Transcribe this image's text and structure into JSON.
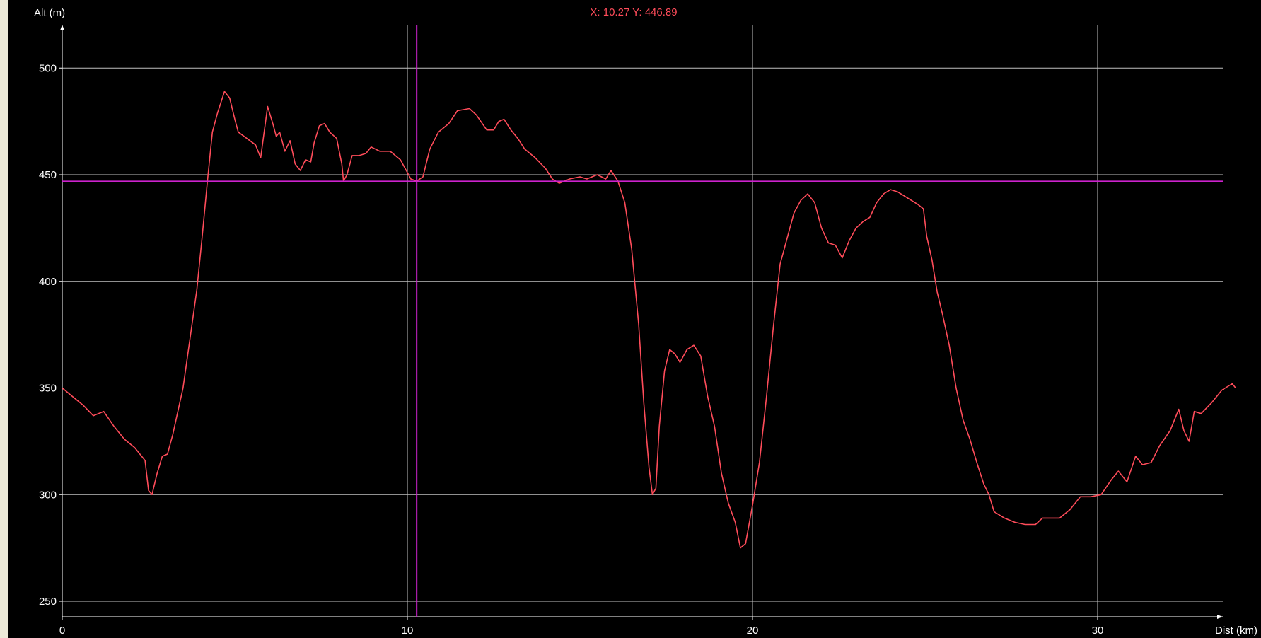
{
  "cursor_readout": "X: 10.27 Y: 446.89",
  "colors": {
    "background": "#000000",
    "window_frame": "#ece9d8",
    "grid": "#c0c0c0",
    "axis": "#ffffff",
    "text": "#ffffff",
    "series": "#ff4c5a",
    "crosshair": "#cc22cc",
    "readout": "#ff4c5a"
  },
  "chart_data": {
    "type": "line",
    "title": "",
    "xlabel": "Dist (km)",
    "ylabel": "Alt (m)",
    "xlim": [
      0,
      34.6
    ],
    "ylim": [
      243,
      521
    ],
    "x_ticks": [
      0,
      10,
      20,
      30
    ],
    "y_ticks": [
      250,
      300,
      350,
      400,
      450,
      500
    ],
    "grid": true,
    "cursor": {
      "x": 10.27,
      "y": 446.89
    },
    "series": [
      {
        "points": [
          [
            0.0,
            350
          ],
          [
            0.3,
            346
          ],
          [
            0.6,
            342
          ],
          [
            0.9,
            337
          ],
          [
            1.2,
            339
          ],
          [
            1.5,
            332
          ],
          [
            1.8,
            326
          ],
          [
            2.1,
            322
          ],
          [
            2.4,
            316
          ],
          [
            2.5,
            302
          ],
          [
            2.6,
            300
          ],
          [
            2.75,
            310
          ],
          [
            2.9,
            318
          ],
          [
            3.05,
            319
          ],
          [
            3.2,
            328
          ],
          [
            3.5,
            350
          ],
          [
            3.7,
            373
          ],
          [
            3.9,
            396
          ],
          [
            4.05,
            420
          ],
          [
            4.2,
            446
          ],
          [
            4.35,
            470
          ],
          [
            4.5,
            479
          ],
          [
            4.7,
            489
          ],
          [
            4.85,
            486
          ],
          [
            5.0,
            476
          ],
          [
            5.1,
            470
          ],
          [
            5.35,
            467
          ],
          [
            5.6,
            464
          ],
          [
            5.75,
            458
          ],
          [
            5.85,
            470
          ],
          [
            5.95,
            482
          ],
          [
            6.1,
            474
          ],
          [
            6.2,
            468
          ],
          [
            6.3,
            470
          ],
          [
            6.45,
            461
          ],
          [
            6.6,
            466
          ],
          [
            6.75,
            455
          ],
          [
            6.9,
            452
          ],
          [
            7.05,
            457
          ],
          [
            7.2,
            456
          ],
          [
            7.3,
            465
          ],
          [
            7.45,
            473
          ],
          [
            7.6,
            474
          ],
          [
            7.75,
            470
          ],
          [
            7.95,
            467
          ],
          [
            8.1,
            455
          ],
          [
            8.15,
            447
          ],
          [
            8.25,
            450
          ],
          [
            8.4,
            459
          ],
          [
            8.6,
            459
          ],
          [
            8.8,
            460
          ],
          [
            8.95,
            463
          ],
          [
            9.2,
            461
          ],
          [
            9.5,
            461
          ],
          [
            9.8,
            457
          ],
          [
            10.1,
            448
          ],
          [
            10.27,
            447
          ],
          [
            10.45,
            449
          ],
          [
            10.65,
            462
          ],
          [
            10.9,
            470
          ],
          [
            11.2,
            474
          ],
          [
            11.45,
            480
          ],
          [
            11.8,
            481
          ],
          [
            12.0,
            478
          ],
          [
            12.3,
            471
          ],
          [
            12.5,
            471
          ],
          [
            12.65,
            475
          ],
          [
            12.8,
            476
          ],
          [
            13.0,
            471
          ],
          [
            13.2,
            467
          ],
          [
            13.4,
            462
          ],
          [
            13.7,
            458
          ],
          [
            14.0,
            453
          ],
          [
            14.2,
            448
          ],
          [
            14.4,
            446
          ],
          [
            14.7,
            448
          ],
          [
            15.0,
            449
          ],
          [
            15.2,
            448
          ],
          [
            15.5,
            450
          ],
          [
            15.75,
            448
          ],
          [
            15.9,
            452
          ],
          [
            16.1,
            447
          ],
          [
            16.3,
            437
          ],
          [
            16.5,
            415
          ],
          [
            16.7,
            380
          ],
          [
            16.85,
            343
          ],
          [
            17.0,
            313
          ],
          [
            17.1,
            300
          ],
          [
            17.2,
            303
          ],
          [
            17.3,
            332
          ],
          [
            17.45,
            358
          ],
          [
            17.6,
            368
          ],
          [
            17.75,
            366
          ],
          [
            17.9,
            362
          ],
          [
            18.1,
            368
          ],
          [
            18.3,
            370
          ],
          [
            18.5,
            365
          ],
          [
            18.7,
            346
          ],
          [
            18.9,
            332
          ],
          [
            19.1,
            310
          ],
          [
            19.3,
            296
          ],
          [
            19.5,
            287
          ],
          [
            19.65,
            275
          ],
          [
            19.8,
            277
          ],
          [
            20.0,
            295
          ],
          [
            20.2,
            315
          ],
          [
            20.4,
            345
          ],
          [
            20.6,
            378
          ],
          [
            20.8,
            408
          ],
          [
            21.0,
            420
          ],
          [
            21.2,
            432
          ],
          [
            21.4,
            438
          ],
          [
            21.6,
            441
          ],
          [
            21.8,
            437
          ],
          [
            22.0,
            425
          ],
          [
            22.2,
            418
          ],
          [
            22.4,
            417
          ],
          [
            22.6,
            411
          ],
          [
            22.8,
            419
          ],
          [
            23.0,
            425
          ],
          [
            23.2,
            428
          ],
          [
            23.4,
            430
          ],
          [
            23.6,
            437
          ],
          [
            23.8,
            441
          ],
          [
            24.0,
            443
          ],
          [
            24.2,
            442
          ],
          [
            24.4,
            440
          ],
          [
            24.6,
            438
          ],
          [
            24.8,
            436
          ],
          [
            24.95,
            434
          ],
          [
            25.05,
            421
          ],
          [
            25.2,
            410
          ],
          [
            25.35,
            395
          ],
          [
            25.5,
            385
          ],
          [
            25.7,
            370
          ],
          [
            25.9,
            350
          ],
          [
            26.1,
            335
          ],
          [
            26.3,
            326
          ],
          [
            26.5,
            315
          ],
          [
            26.7,
            305
          ],
          [
            26.85,
            300
          ],
          [
            27.0,
            292
          ],
          [
            27.3,
            289
          ],
          [
            27.6,
            287
          ],
          [
            27.9,
            286
          ],
          [
            28.2,
            286
          ],
          [
            28.4,
            289
          ],
          [
            28.6,
            289
          ],
          [
            28.9,
            289
          ],
          [
            29.2,
            293
          ],
          [
            29.5,
            299
          ],
          [
            29.8,
            299
          ],
          [
            30.1,
            300
          ],
          [
            30.4,
            307
          ],
          [
            30.6,
            311
          ],
          [
            30.85,
            306
          ],
          [
            31.1,
            318
          ],
          [
            31.3,
            314
          ],
          [
            31.55,
            315
          ],
          [
            31.8,
            323
          ],
          [
            32.1,
            330
          ],
          [
            32.35,
            340
          ],
          [
            32.5,
            330
          ],
          [
            32.65,
            325
          ],
          [
            32.8,
            339
          ],
          [
            33.0,
            338
          ],
          [
            33.3,
            343
          ],
          [
            33.6,
            349
          ],
          [
            33.9,
            352
          ],
          [
            34.0,
            350
          ]
        ]
      }
    ]
  }
}
